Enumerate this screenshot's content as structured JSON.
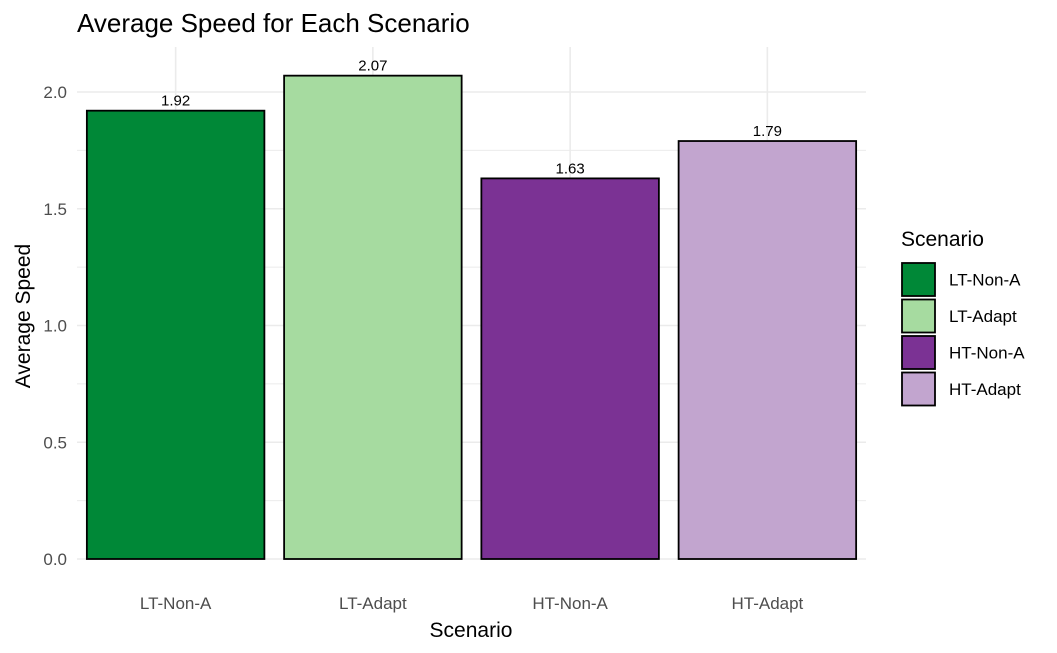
{
  "chart_data": {
    "type": "bar",
    "title": "Average Speed for Each Scenario",
    "xlabel": "Scenario",
    "ylabel": "Average Speed",
    "categories": [
      "LT-Non-A",
      "LT-Adapt",
      "HT-Non-A",
      "HT-Adapt"
    ],
    "values": [
      1.92,
      2.07,
      1.63,
      1.79
    ],
    "value_labels": [
      "1.92",
      "2.07",
      "1.63",
      "1.79"
    ],
    "colors": [
      "#008837",
      "#a6dba0",
      "#7b3294",
      "#c2a5cf"
    ],
    "bar_border_color": "#000000",
    "ylim": [
      0,
      2.07
    ],
    "yticks": [
      0.0,
      0.5,
      1.0,
      1.5,
      2.0
    ],
    "ytick_labels": [
      "0.0",
      "0.5",
      "1.0",
      "1.5",
      "2.0"
    ],
    "grid": true,
    "grid_color": "#ebebeb",
    "legend": {
      "title": "Scenario",
      "position": "right",
      "items": [
        "LT-Non-A",
        "LT-Adapt",
        "HT-Non-A",
        "HT-Adapt"
      ]
    }
  }
}
